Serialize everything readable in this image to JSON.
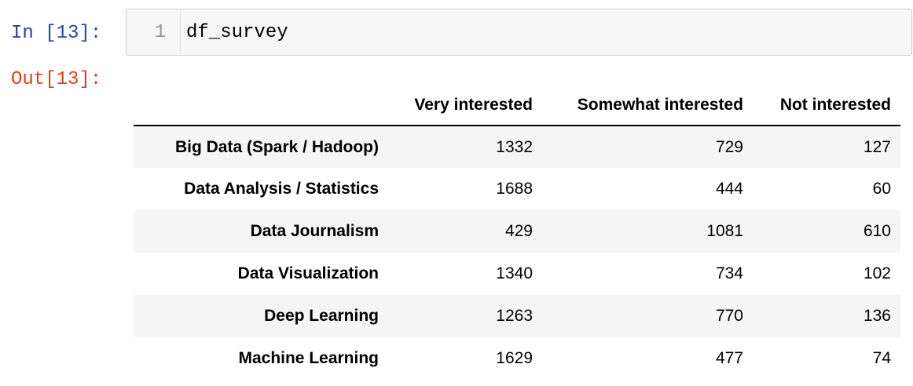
{
  "cell": {
    "in_prompt": "In [13]:",
    "out_prompt": "Out[13]:",
    "line_number": "1",
    "code": "df_survey"
  },
  "table": {
    "columns": [
      "Very interested",
      "Somewhat interested",
      "Not interested"
    ],
    "rows": [
      {
        "label": "Big Data (Spark / Hadoop)",
        "values": [
          "1332",
          "729",
          "127"
        ]
      },
      {
        "label": "Data Analysis / Statistics",
        "values": [
          "1688",
          "444",
          "60"
        ]
      },
      {
        "label": "Data Journalism",
        "values": [
          "429",
          "1081",
          "610"
        ]
      },
      {
        "label": "Data Visualization",
        "values": [
          "1340",
          "734",
          "102"
        ]
      },
      {
        "label": "Deep Learning",
        "values": [
          "1263",
          "770",
          "136"
        ]
      },
      {
        "label": "Machine Learning",
        "values": [
          "1629",
          "477",
          "74"
        ]
      }
    ]
  }
}
